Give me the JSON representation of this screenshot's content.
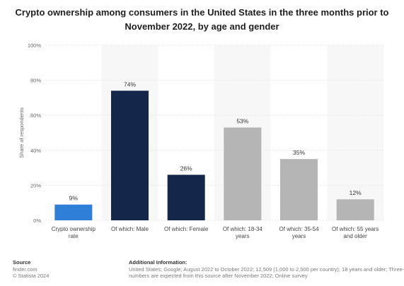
{
  "title": "Crypto ownership among consumers in the United States in the three months prior to November 2022, by age and gender",
  "chart_data": {
    "type": "bar",
    "categories": [
      "Crypto ownership rate",
      "Of which: Male",
      "Of which: Female",
      "Of which: 18-34 years",
      "Of which: 35-54 years",
      "Of which: 55 years and older"
    ],
    "values": [
      9,
      74,
      26,
      53,
      35,
      12
    ],
    "value_labels": [
      "9%",
      "74%",
      "26%",
      "53%",
      "35%",
      "12%"
    ],
    "bar_colors": [
      "#2f7ed8",
      "#14264a",
      "#14264a",
      "#b5b5b5",
      "#b5b5b5",
      "#b5b5b5"
    ],
    "shaded_columns": [
      1,
      3,
      5
    ],
    "ylabel": "Share of respondents",
    "ylim": [
      0,
      100
    ],
    "yticks": [
      "0%",
      "20%",
      "40%",
      "60%",
      "80%",
      "100%"
    ],
    "grid": true
  },
  "footer": {
    "source_heading": "Source",
    "source_lines": [
      "finder.com",
      "© Statista 2024"
    ],
    "info_heading": "Additional Information:",
    "info_lines": [
      "United States; Google; August 2022 to October 2022; 12,509 (1,000 to 2,500 per country); 18 years and older; Three-month",
      "numbers are expected from this source after November 2022; Online survey"
    ]
  },
  "colors": {
    "grid": "#e6e6e6",
    "shade": "#f7f7f7",
    "axis_text": "#666666"
  }
}
